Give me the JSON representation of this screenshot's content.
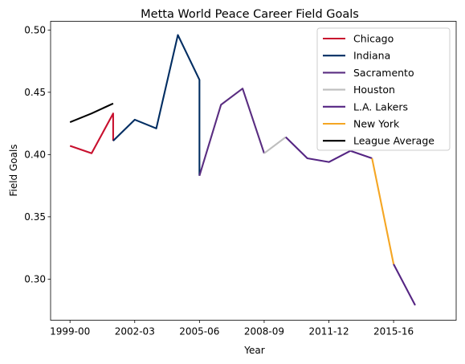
{
  "chart_data": {
    "type": "line",
    "title": "Metta World Peace Career Field Goals",
    "xlabel": "Year",
    "ylabel": "Field Goals",
    "x_ticks": [
      {
        "x": 0,
        "label": "1999-00"
      },
      {
        "x": 3,
        "label": "2002-03"
      },
      {
        "x": 6,
        "label": "2005-06"
      },
      {
        "x": 9,
        "label": "2008-09"
      },
      {
        "x": 12,
        "label": "2011-12"
      },
      {
        "x": 15,
        "label": "2015-16"
      }
    ],
    "y_ticks": [
      {
        "y": 0.3,
        "label": "0.30"
      },
      {
        "y": 0.35,
        "label": "0.35"
      },
      {
        "y": 0.4,
        "label": "0.40"
      },
      {
        "y": 0.45,
        "label": "0.45"
      },
      {
        "y": 0.5,
        "label": "0.50"
      }
    ],
    "xlim": [
      -0.9,
      17.9
    ],
    "ylim": [
      0.267,
      0.507
    ],
    "grid": false,
    "legend_position": "top-right",
    "series": [
      {
        "name": "Chicago",
        "color": "#c8102e",
        "points": [
          [
            0,
            0.407
          ],
          [
            1,
            0.401
          ],
          [
            2,
            0.433
          ],
          [
            2,
            0.411
          ]
        ]
      },
      {
        "name": "Indiana",
        "color": "#002d62",
        "points": [
          [
            2,
            0.411
          ],
          [
            3,
            0.428
          ],
          [
            4,
            0.421
          ],
          [
            5,
            0.496
          ],
          [
            6,
            0.46
          ],
          [
            6,
            0.383
          ]
        ]
      },
      {
        "name": "Sacramento",
        "color": "#5a2d81",
        "points": [
          [
            6,
            0.383
          ],
          [
            7,
            0.44
          ],
          [
            8,
            0.453
          ],
          [
            9,
            0.401
          ]
        ]
      },
      {
        "name": "Houston",
        "color": "#bebebe",
        "points": [
          [
            9,
            0.401
          ],
          [
            10,
            0.414
          ]
        ]
      },
      {
        "name": "L.A. Lakers",
        "color": "#552583",
        "points": [
          [
            10,
            0.414
          ],
          [
            11,
            0.397
          ],
          [
            12,
            0.394
          ],
          [
            13,
            0.403
          ],
          [
            14,
            0.397
          ]
        ]
      },
      {
        "name": "New York",
        "color": "#f5a623",
        "points": [
          [
            14,
            0.397
          ],
          [
            15,
            0.312
          ]
        ]
      },
      {
        "name": "L.A. Lakers",
        "color": "#552583",
        "in_legend": false,
        "points": [
          [
            15,
            0.312
          ],
          [
            16,
            0.279
          ]
        ]
      },
      {
        "name": "League Average",
        "color": "#000000",
        "points": [
          [
            0,
            0.426
          ],
          [
            1,
            0.433
          ],
          [
            2,
            0.441
          ]
        ]
      }
    ]
  }
}
